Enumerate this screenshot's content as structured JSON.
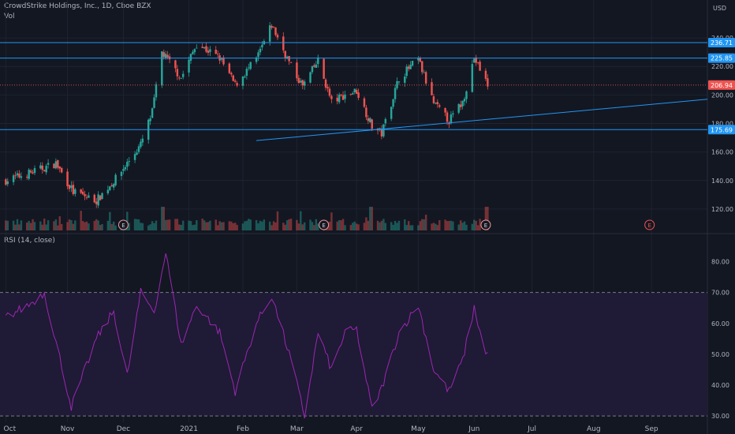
{
  "header": {
    "title": "CrowdStrike Holdings, Inc., 1D, Cboe BZX",
    "vol_label": "Vol",
    "rsi_label": "RSI (14, close)",
    "currency": "USD"
  },
  "colors": {
    "background": "#131722",
    "up": "#26a69a",
    "down": "#ef5350",
    "level_line": "#2196f3",
    "rsi_line": "#9c27b0",
    "rsi_band": "#1f1a36",
    "grid": "#1f2330",
    "axis_text": "#b2b5be",
    "last_price_bg": "#ef5350",
    "level_label_bg": "#2196f3"
  },
  "price_axis": {
    "ticks": [
      "240.00",
      "220.00",
      "200.00",
      "180.00",
      "160.00",
      "140.00",
      "120.00"
    ]
  },
  "rsi_axis": {
    "ticks": [
      "80.00",
      "70.00",
      "60.00",
      "50.00",
      "40.00",
      "30.00"
    ]
  },
  "time_axis": {
    "ticks": [
      "Oct",
      "Nov",
      "Dec",
      "2021",
      "Feb",
      "Mar",
      "Apr",
      "May",
      "Jun",
      "Jul",
      "Aug",
      "Sep"
    ]
  },
  "level_labels": [
    "236.71",
    "225.85",
    "175.69"
  ],
  "last_price": "206.94",
  "earnings_marker": "E",
  "chart_data": {
    "type": "candlestick",
    "title": "CrowdStrike Holdings, Inc., 1D, Cboe BZX",
    "price_range": [
      105,
      250
    ],
    "horizontal_levels": [
      236.71,
      225.85,
      175.69
    ],
    "last_price": 206.94,
    "trendline": {
      "from": [
        "2021-02-08",
        168
      ],
      "to": [
        "2021-09-30",
        197
      ]
    },
    "price_path": [
      [
        "2020-10-01",
        140
      ],
      [
        "2020-10-15",
        146
      ],
      [
        "2020-10-27",
        152
      ],
      [
        "2020-11-05",
        132
      ],
      [
        "2020-11-17",
        126
      ],
      [
        "2020-11-27",
        141
      ],
      [
        "2020-12-04",
        154
      ],
      [
        "2020-12-10",
        165
      ],
      [
        "2020-12-16",
        188
      ],
      [
        "2020-12-21",
        230
      ],
      [
        "2020-12-31",
        212
      ],
      [
        "2021-01-08",
        236
      ],
      [
        "2021-01-20",
        226
      ],
      [
        "2021-01-28",
        207
      ],
      [
        "2021-02-08",
        225
      ],
      [
        "2021-02-16",
        249
      ],
      [
        "2021-02-26",
        220
      ],
      [
        "2021-03-04",
        206
      ],
      [
        "2021-03-12",
        224
      ],
      [
        "2021-03-19",
        195
      ],
      [
        "2021-03-26",
        200
      ],
      [
        "2021-04-01",
        203
      ],
      [
        "2021-04-09",
        178
      ],
      [
        "2021-04-14",
        173
      ],
      [
        "2021-04-23",
        212
      ],
      [
        "2021-05-03",
        225
      ],
      [
        "2021-05-11",
        194
      ],
      [
        "2021-05-19",
        182
      ],
      [
        "2021-05-26",
        195
      ],
      [
        "2021-06-01",
        226
      ],
      [
        "2021-06-08",
        207
      ]
    ],
    "volume_ratio_spikes": [
      "2020-12-21",
      "2021-04-09",
      "2021-06-08"
    ],
    "earnings_dates": [
      "2020-12-01",
      "2021-03-15",
      "2021-06-07",
      "2021-08-31"
    ],
    "rsi": {
      "range": [
        28,
        85
      ],
      "bands": [
        70,
        30
      ],
      "path": [
        [
          "2020-10-01",
          62
        ],
        [
          "2020-10-13",
          66
        ],
        [
          "2020-10-21",
          70
        ],
        [
          "2020-11-04",
          33
        ],
        [
          "2020-11-17",
          55
        ],
        [
          "2020-11-26",
          64
        ],
        [
          "2020-12-03",
          43
        ],
        [
          "2020-12-10",
          70
        ],
        [
          "2020-12-17",
          64
        ],
        [
          "2020-12-23",
          83
        ],
        [
          "2020-12-31",
          53
        ],
        [
          "2021-01-08",
          66
        ],
        [
          "2021-01-20",
          57
        ],
        [
          "2021-01-28",
          38
        ],
        [
          "2021-02-08",
          60
        ],
        [
          "2021-02-16",
          69
        ],
        [
          "2021-02-26",
          48
        ],
        [
          "2021-03-05",
          30
        ],
        [
          "2021-03-12",
          57
        ],
        [
          "2021-03-19",
          45
        ],
        [
          "2021-03-26",
          57
        ],
        [
          "2021-04-01",
          58
        ],
        [
          "2021-04-09",
          32
        ],
        [
          "2021-04-14",
          39
        ],
        [
          "2021-04-23",
          57
        ],
        [
          "2021-05-03",
          66
        ],
        [
          "2021-05-11",
          45
        ],
        [
          "2021-05-19",
          38
        ],
        [
          "2021-05-26",
          48
        ],
        [
          "2021-06-01",
          65
        ],
        [
          "2021-06-07",
          50
        ]
      ]
    }
  }
}
